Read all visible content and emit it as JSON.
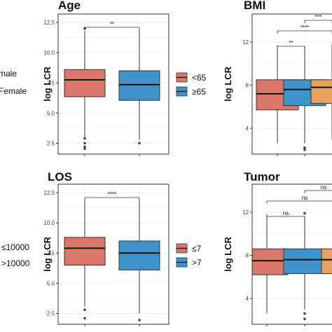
{
  "colors": {
    "red": "#D9786A",
    "blue": "#3F94CC",
    "orange": "#E7A15C",
    "grid": "#EBEBEB",
    "border": "#333333"
  },
  "side_labels": {
    "top": [
      "male",
      "Female"
    ],
    "bottom": [
      "≤10000",
      ">10000"
    ]
  },
  "chart_data": [
    {
      "type": "box",
      "title": "Age",
      "ylabel": "log LCR",
      "ylim": [
        1.6,
        13.2
      ],
      "yticks": [
        "2.5",
        "5.0",
        "7.5",
        "10.0",
        "12.5"
      ],
      "ytick_values": [
        2.5,
        5.0,
        7.5,
        10.0,
        12.5
      ],
      "legend": [
        "<65",
        "≥65"
      ],
      "boxes": [
        {
          "name": "<65",
          "color": "red",
          "q1": 6.35,
          "median": 7.75,
          "q3": 8.6,
          "wlow": 3.0,
          "whigh": 11.8,
          "outliers": [
            12.0,
            2.9,
            2.5,
            2.2,
            2.05
          ]
        },
        {
          "name": "≥65",
          "color": "blue",
          "q1": 6.05,
          "median": 7.35,
          "q3": 8.5,
          "wlow": 2.75,
          "whigh": 11.9,
          "outliers": [
            2.5
          ]
        }
      ],
      "comparisons": [
        {
          "from": 0,
          "to": 1,
          "label": "**"
        }
      ]
    },
    {
      "type": "box",
      "title": "BMI",
      "ylabel": "log LCR",
      "ylim": [
        1.6,
        14.6
      ],
      "yticks": [
        "4",
        "8",
        "12"
      ],
      "ytick_values": [
        4,
        8,
        12
      ],
      "boxes": [
        {
          "name": "",
          "color": "red",
          "q1": 5.7,
          "median": 7.2,
          "q3": 8.5,
          "wlow": 2.6,
          "whigh": 11.7,
          "outliers": []
        },
        {
          "name": "",
          "color": "blue",
          "q1": 6.1,
          "median": 7.6,
          "q3": 8.5,
          "wlow": 2.6,
          "whigh": 11.6,
          "outliers": [
            2.2,
            2.0
          ]
        },
        {
          "name": "",
          "color": "orange",
          "q1": 6.3,
          "median": 7.8,
          "q3": 8.5,
          "wlow": 3.0,
          "whigh": 11.8,
          "outliers": []
        }
      ],
      "comparisons": [
        {
          "from": 0,
          "to": 1,
          "label": "**"
        },
        {
          "from": 0,
          "to": 2,
          "label": "****"
        },
        {
          "from": 1,
          "to": 2,
          "label": "***"
        }
      ]
    },
    {
      "type": "box",
      "title": "LOS",
      "ylabel": "log LCR",
      "ylim": [
        1.6,
        13.2
      ],
      "yticks": [
        "2.5",
        "5.0",
        "7.5",
        "10.0",
        "12.5"
      ],
      "ytick_values": [
        2.5,
        5.0,
        7.5,
        10.0,
        12.5
      ],
      "legend": [
        "≤7",
        ">7"
      ],
      "boxes": [
        {
          "name": "≤7",
          "color": "red",
          "q1": 6.5,
          "median": 7.9,
          "q3": 8.8,
          "wlow": 3.1,
          "whigh": 11.9,
          "outliers": [
            2.8,
            2.1
          ]
        },
        {
          "name": ">7",
          "color": "blue",
          "q1": 6.1,
          "median": 7.5,
          "q3": 8.5,
          "wlow": 2.5,
          "whigh": 11.9,
          "outliers": [
            1.95
          ]
        }
      ],
      "comparisons": [
        {
          "from": 0,
          "to": 1,
          "label": "****"
        }
      ]
    },
    {
      "type": "box",
      "title": "Tumor",
      "ylabel": "log LCR",
      "ylim": [
        1.6,
        14.6
      ],
      "yticks": [
        "4",
        "8",
        "12"
      ],
      "ytick_values": [
        4,
        8,
        12
      ],
      "boxes": [
        {
          "name": "",
          "color": "red",
          "q1": 6.2,
          "median": 7.5,
          "q3": 8.6,
          "wlow": 2.6,
          "whigh": 11.8,
          "outliers": []
        },
        {
          "name": "",
          "color": "blue",
          "q1": 6.3,
          "median": 7.6,
          "q3": 8.6,
          "wlow": 3.0,
          "whigh": 11.6,
          "outliers": [
            11.9,
            2.6,
            2.1
          ]
        },
        {
          "name": "",
          "color": "orange",
          "q1": 6.3,
          "median": 7.6,
          "q3": 8.6,
          "wlow": 3.0,
          "whigh": 11.8,
          "outliers": []
        }
      ],
      "comparisons": [
        {
          "from": 0,
          "to": 1,
          "label": "ns"
        },
        {
          "from": 0,
          "to": 2,
          "label": "ns"
        },
        {
          "from": 1,
          "to": 2,
          "label": "ns"
        }
      ]
    }
  ]
}
